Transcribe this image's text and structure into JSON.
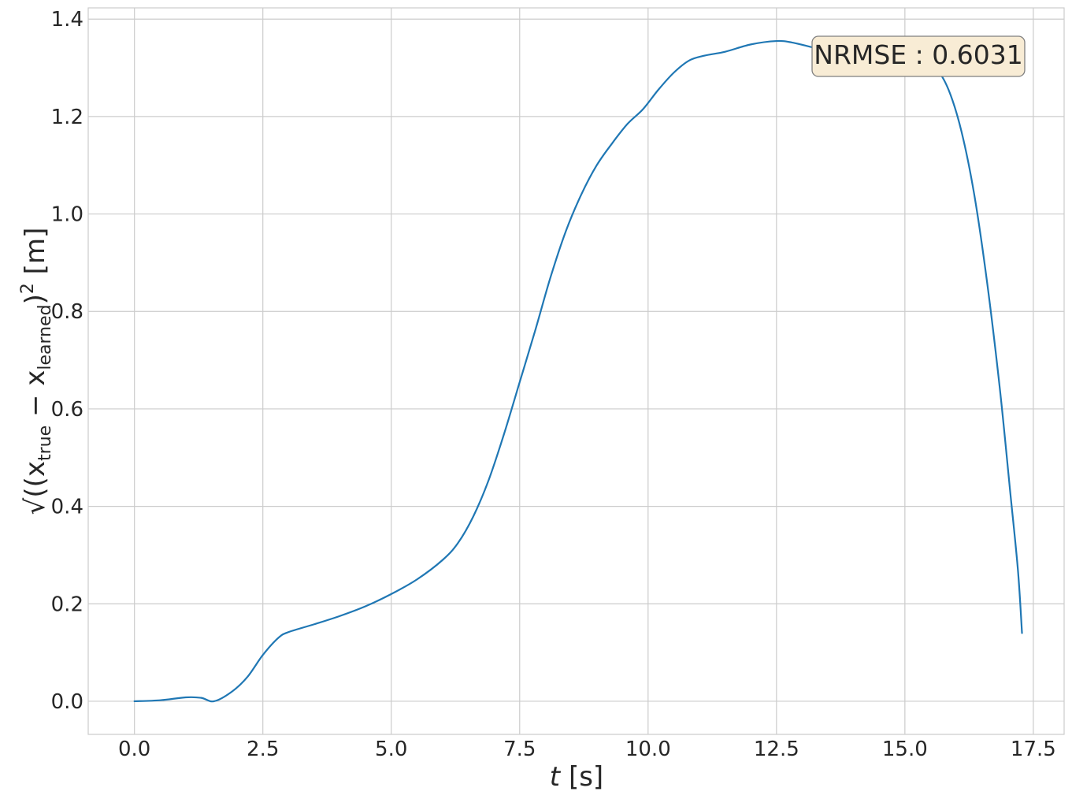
{
  "chart_data": {
    "type": "line",
    "title": "",
    "xlabel": {
      "var": "t",
      "unit": " [s]"
    },
    "ylabel": {
      "open": "√((x",
      "sub1": "true",
      "minus": " − x",
      "sub2": "learned",
      "close": ")",
      "sup": "2",
      "unit": " [m]"
    },
    "xlim": [
      -0.9,
      18.1
    ],
    "ylim": [
      -0.068,
      1.423
    ],
    "xticks": [
      0.0,
      2.5,
      5.0,
      7.5,
      10.0,
      12.5,
      15.0,
      17.5
    ],
    "xtick_labels": [
      "0.0",
      "2.5",
      "5.0",
      "7.5",
      "10.0",
      "12.5",
      "15.0",
      "17.5"
    ],
    "yticks": [
      0.0,
      0.2,
      0.4,
      0.6,
      0.8,
      1.0,
      1.2,
      1.4
    ],
    "ytick_labels": [
      "0.0",
      "0.2",
      "0.4",
      "0.6",
      "0.8",
      "1.0",
      "1.2",
      "1.4"
    ],
    "grid": true,
    "colors": {
      "line": "#1f77b4",
      "grid": "#cccccc",
      "annotation_fill": "#f8ecd5",
      "annotation_edge": "#7f7f7f"
    },
    "annotation": {
      "text": "NRMSE : 0.6031",
      "position": "top-right"
    },
    "series": [
      {
        "x": [
          0.0,
          0.5,
          1.0,
          1.3,
          1.55,
          1.9,
          2.2,
          2.5,
          2.8,
          3.0,
          3.5,
          4.0,
          4.5,
          5.0,
          5.5,
          6.0,
          6.3,
          6.6,
          6.9,
          7.2,
          7.5,
          7.8,
          8.1,
          8.4,
          8.7,
          9.0,
          9.3,
          9.6,
          9.9,
          10.2,
          10.5,
          10.8,
          11.1,
          11.5,
          12.0,
          12.5,
          12.8,
          13.2,
          13.6,
          14.0,
          14.4,
          14.8,
          15.0,
          15.3,
          15.6,
          15.85,
          16.1,
          16.35,
          16.6,
          16.85,
          17.05,
          17.2,
          17.28
        ],
        "y": [
          0.0,
          0.002,
          0.008,
          0.007,
          0.0,
          0.02,
          0.05,
          0.095,
          0.13,
          0.142,
          0.158,
          0.175,
          0.195,
          0.22,
          0.25,
          0.29,
          0.325,
          0.38,
          0.455,
          0.55,
          0.655,
          0.76,
          0.87,
          0.965,
          1.04,
          1.1,
          1.145,
          1.185,
          1.215,
          1.255,
          1.29,
          1.315,
          1.325,
          1.333,
          1.348,
          1.355,
          1.352,
          1.342,
          1.332,
          1.322,
          1.318,
          1.32,
          1.323,
          1.32,
          1.3,
          1.255,
          1.17,
          1.04,
          0.86,
          0.64,
          0.43,
          0.27,
          0.14
        ]
      }
    ]
  }
}
